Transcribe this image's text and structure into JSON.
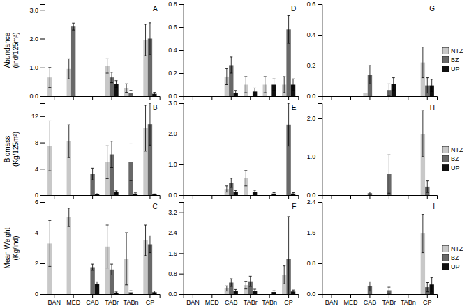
{
  "chart_data": [
    {
      "type": "bar",
      "categories": [
        "BAN",
        "MED",
        "CAB",
        "TABr",
        "TABn",
        "CP"
      ],
      "ylabel": "Abundance\n(ind/125m²)",
      "annotations": [
        "A"
      ],
      "tick_labels": "y",
      "series": [
        {
          "name": "NTZ",
          "color": "#c8c8c8",
          "values": [
            0.65,
            0.95,
            0.0,
            1.05,
            0.28,
            1.95
          ],
          "errors": [
            0.35,
            0.35,
            0.0,
            0.25,
            0.15,
            0.55
          ]
        },
        {
          "name": "BZ",
          "color": "#686868",
          "values": [
            0.0,
            2.42,
            0.0,
            0.65,
            0.12,
            2.0
          ],
          "errors": [
            0.0,
            0.12,
            0.0,
            0.18,
            0.08,
            0.55
          ]
        },
        {
          "name": "UP",
          "color": "#101010",
          "values": [
            0.0,
            0.0,
            0.0,
            0.42,
            0.0,
            0.08
          ],
          "errors": [
            0.0,
            0.0,
            0.0,
            0.12,
            0.0,
            0.05
          ]
        }
      ],
      "ylim": [
        0,
        3.2
      ],
      "yticks": [
        {
          "value": 0,
          "label": "0.0"
        },
        {
          "value": 1,
          "label": "1.0"
        },
        {
          "value": 2,
          "label": "2.0"
        },
        {
          "value": 3,
          "label": "3.0"
        }
      ]
    },
    {
      "type": "bar",
      "categories": [
        "BAN",
        "MED",
        "CAB",
        "TABr",
        "TABn",
        "CP"
      ],
      "annotations": [
        "D"
      ],
      "tick_labels": "y",
      "series": [
        {
          "name": "NTZ",
          "color": "#c8c8c8",
          "values": [
            0.0,
            0.0,
            0.17,
            0.1,
            0.1,
            0.1
          ],
          "errors": [
            0.0,
            0.0,
            0.07,
            0.07,
            0.07,
            0.07
          ]
        },
        {
          "name": "BZ",
          "color": "#686868",
          "values": [
            0.0,
            0.0,
            0.27,
            0.0,
            0.0,
            0.58
          ],
          "errors": [
            0.0,
            0.0,
            0.07,
            0.0,
            0.0,
            0.12
          ]
        },
        {
          "name": "UP",
          "color": "#101010",
          "values": [
            0.0,
            0.0,
            0.03,
            0.04,
            0.1,
            0.1
          ],
          "errors": [
            0.0,
            0.0,
            0.02,
            0.03,
            0.05,
            0.05
          ]
        }
      ],
      "ylim": [
        0,
        0.8
      ],
      "yticks": [
        {
          "value": 0,
          "label": "0.0"
        },
        0.2,
        0.4,
        0.6,
        0.8
      ]
    },
    {
      "type": "bar",
      "categories": [
        "BAN",
        "MED",
        "CAB",
        "TABr",
        "TABn",
        "CP"
      ],
      "annotations": [
        "G"
      ],
      "tick_labels": "y",
      "legend": "right",
      "series": [
        {
          "name": "NTZ",
          "color": "#c8c8c8",
          "values": [
            0.0,
            0.0,
            0.02,
            0.0,
            0.0,
            0.22
          ],
          "errors": [
            0.0,
            0.0,
            0.0,
            0.0,
            0.0,
            0.1
          ]
        },
        {
          "name": "BZ",
          "color": "#686868",
          "values": [
            0.0,
            0.0,
            0.14,
            0.04,
            0.0,
            0.07
          ],
          "errors": [
            0.0,
            0.0,
            0.06,
            0.04,
            0.0,
            0.05
          ]
        },
        {
          "name": "UP",
          "color": "#101010",
          "values": [
            0.0,
            0.0,
            0.0,
            0.08,
            0.0,
            0.07
          ],
          "errors": [
            0.0,
            0.0,
            0.0,
            0.04,
            0.0,
            0.04
          ]
        }
      ],
      "ylim": [
        0,
        0.6
      ],
      "yticks": [
        {
          "value": 0,
          "label": "0.0"
        },
        0.2,
        0.4,
        0.6
      ]
    },
    {
      "type": "bar",
      "categories": [
        "BAN",
        "MED",
        "CAB",
        "TABr",
        "TABn",
        "CP"
      ],
      "ylabel": "Biomass\n(Kg/125m²)",
      "annotations": [
        "B"
      ],
      "tick_labels": "y",
      "series": [
        {
          "name": "NTZ",
          "color": "#c8c8c8",
          "values": [
            7.5,
            8.2,
            0.0,
            5.0,
            0.0,
            10.2
          ],
          "errors": [
            3.8,
            2.5,
            0.0,
            2.5,
            0.0,
            3.5
          ]
        },
        {
          "name": "BZ",
          "color": "#686868",
          "values": [
            0.0,
            0.0,
            3.2,
            6.2,
            5.0,
            10.8
          ],
          "errors": [
            0.0,
            0.0,
            0.9,
            2.0,
            2.8,
            3.2
          ]
        },
        {
          "name": "UP",
          "color": "#101010",
          "values": [
            0.0,
            0.0,
            0.12,
            0.45,
            0.22,
            0.1
          ],
          "errors": [
            0.0,
            0.0,
            0.08,
            0.2,
            0.12,
            0.08
          ]
        }
      ],
      "ylim": [
        0,
        14
      ],
      "yticks": [
        0,
        4,
        8,
        12
      ]
    },
    {
      "type": "bar",
      "categories": [
        "BAN",
        "MED",
        "CAB",
        "TABr",
        "TABn",
        "CP"
      ],
      "annotations": [
        "E"
      ],
      "tick_labels": "y",
      "series": [
        {
          "name": "NTZ",
          "color": "#c8c8c8",
          "values": [
            0.0,
            0.0,
            0.2,
            0.55,
            0.0,
            0.0
          ],
          "errors": [
            0.0,
            0.0,
            0.1,
            0.25,
            0.0,
            0.0
          ]
        },
        {
          "name": "BZ",
          "color": "#686868",
          "values": [
            0.0,
            0.0,
            0.4,
            0.0,
            0.0,
            2.3
          ],
          "errors": [
            0.0,
            0.0,
            0.15,
            0.0,
            0.0,
            0.7
          ]
        },
        {
          "name": "UP",
          "color": "#101010",
          "values": [
            0.0,
            0.0,
            0.1,
            0.1,
            0.05,
            0.05
          ],
          "errors": [
            0.0,
            0.0,
            0.05,
            0.06,
            0.03,
            0.03
          ]
        }
      ],
      "ylim": [
        0,
        3.0
      ],
      "yticks": [
        {
          "value": 0,
          "label": "0.0"
        },
        {
          "value": 1,
          "label": "1.0"
        },
        {
          "value": 2,
          "label": "2.0"
        },
        {
          "value": 3,
          "label": "3.0"
        }
      ]
    },
    {
      "type": "bar",
      "categories": [
        "BAN",
        "MED",
        "CAB",
        "TABr",
        "TABn",
        "CP"
      ],
      "annotations": [
        "H"
      ],
      "tick_labels": "y",
      "legend": "right",
      "series": [
        {
          "name": "NTZ",
          "color": "#c8c8c8",
          "values": [
            0.0,
            0.0,
            0.0,
            0.0,
            0.0,
            1.6
          ],
          "errors": [
            0.0,
            0.0,
            0.0,
            0.0,
            0.0,
            0.6
          ]
        },
        {
          "name": "BZ",
          "color": "#686868",
          "values": [
            0.0,
            0.0,
            0.05,
            0.55,
            0.0,
            0.22
          ],
          "errors": [
            0.0,
            0.0,
            0.03,
            0.5,
            0.0,
            0.15
          ]
        },
        {
          "name": "UP",
          "color": "#101010",
          "values": [
            0.0,
            0.0,
            0.0,
            0.0,
            0.0,
            0.0
          ],
          "errors": [
            0.0,
            0.0,
            0.0,
            0.0,
            0.0,
            0.0
          ]
        }
      ],
      "ylim": [
        0,
        2.4
      ],
      "yticks": [
        {
          "value": 0,
          "label": "0.0"
        },
        {
          "value": 1,
          "label": "1.0"
        },
        {
          "value": 2,
          "label": "2.0"
        }
      ]
    },
    {
      "type": "bar",
      "categories": [
        "BAN",
        "MED",
        "CAB",
        "TABr",
        "TABn",
        "CP"
      ],
      "ylabel": "Mean Weight\n(Kg/ind)",
      "annotations": [
        "C"
      ],
      "series": [
        {
          "name": "NTZ",
          "color": "#c8c8c8",
          "values": [
            3.3,
            5.0,
            0.0,
            3.1,
            2.3,
            3.5
          ],
          "errors": [
            1.5,
            0.6,
            0.0,
            1.4,
            1.7,
            1.0
          ]
        },
        {
          "name": "BZ",
          "color": "#686868",
          "values": [
            0.0,
            0.0,
            1.75,
            1.6,
            0.12,
            3.25
          ],
          "errors": [
            0.0,
            0.0,
            0.2,
            0.35,
            0.1,
            0.55
          ]
        },
        {
          "name": "UP",
          "color": "#101010",
          "values": [
            0.0,
            0.0,
            0.65,
            0.08,
            0.0,
            0.12
          ],
          "errors": [
            0.0,
            0.0,
            0.15,
            0.06,
            0.0,
            0.08
          ]
        }
      ],
      "ylim": [
        0,
        6
      ],
      "yticks": [
        0,
        2,
        4,
        6
      ]
    },
    {
      "type": "bar",
      "categories": [
        "BAN",
        "MED",
        "CAB",
        "TABr",
        "TABn",
        "CP"
      ],
      "annotations": [
        "F"
      ],
      "series": [
        {
          "name": "NTZ",
          "color": "#c8c8c8",
          "values": [
            0.0,
            0.0,
            0.22,
            0.35,
            0.0,
            0.75
          ],
          "errors": [
            0.0,
            0.0,
            0.1,
            0.15,
            0.0,
            0.35
          ]
        },
        {
          "name": "BZ",
          "color": "#686868",
          "values": [
            0.0,
            0.0,
            0.45,
            0.5,
            0.0,
            1.38
          ],
          "errors": [
            0.0,
            0.0,
            0.15,
            0.2,
            0.0,
            1.65
          ]
        },
        {
          "name": "UP",
          "color": "#101010",
          "values": [
            0.0,
            0.0,
            0.12,
            0.12,
            0.08,
            0.1
          ],
          "errors": [
            0.0,
            0.0,
            0.06,
            0.07,
            0.05,
            0.06
          ]
        }
      ],
      "ylim": [
        0,
        3.6
      ],
      "yticks": [
        {
          "value": 0,
          "label": "0.0"
        },
        0.8,
        1.6,
        2.4,
        3.2
      ]
    },
    {
      "type": "bar",
      "categories": [
        "BAN",
        "MED",
        "CAB",
        "TABr",
        "TABn",
        "CP"
      ],
      "annotations": [
        "I"
      ],
      "legend": "right",
      "series": [
        {
          "name": "NTZ",
          "color": "#c8c8c8",
          "values": [
            0.0,
            0.0,
            0.0,
            0.0,
            0.0,
            1.58
          ],
          "errors": [
            0.0,
            0.0,
            0.0,
            0.0,
            0.0,
            0.5
          ]
        },
        {
          "name": "BZ",
          "color": "#686868",
          "values": [
            0.0,
            0.0,
            0.2,
            0.1,
            0.0,
            0.18
          ],
          "errors": [
            0.0,
            0.0,
            0.12,
            0.08,
            0.0,
            0.12
          ]
        },
        {
          "name": "UP",
          "color": "#101010",
          "values": [
            0.0,
            0.0,
            0.0,
            0.0,
            0.0,
            0.25
          ],
          "errors": [
            0.0,
            0.0,
            0.0,
            0.0,
            0.0,
            0.18
          ]
        }
      ],
      "ylim": [
        0,
        2.4
      ],
      "yticks": [
        {
          "value": 0,
          "label": "0.0"
        },
        0.8,
        1.6,
        2.4
      ]
    }
  ]
}
